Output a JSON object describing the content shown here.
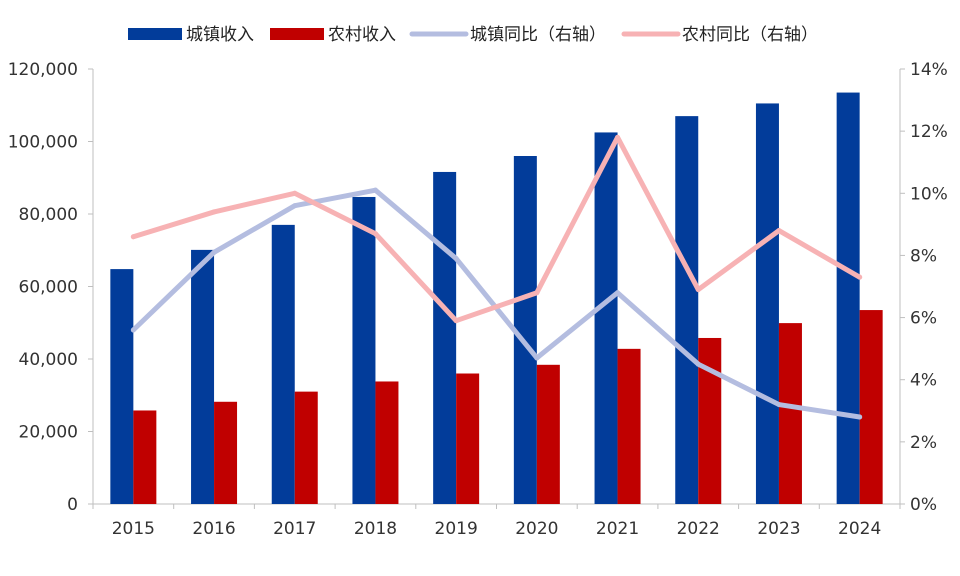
{
  "chart_data": {
    "type": "bar+line",
    "categories": [
      "2015",
      "2016",
      "2017",
      "2018",
      "2019",
      "2020",
      "2021",
      "2022",
      "2023",
      "2024"
    ],
    "bar_series": [
      {
        "name": "城镇收入",
        "color": "#023C9A",
        "values": [
          64800,
          70100,
          77000,
          84700,
          91600,
          96000,
          102500,
          107000,
          110500,
          113500
        ]
      },
      {
        "name": "农村收入",
        "color": "#C00000",
        "values": [
          25800,
          28200,
          31000,
          33800,
          36000,
          38400,
          42800,
          45800,
          49900,
          53500
        ]
      }
    ],
    "line_series": [
      {
        "name": "城镇同比（右轴）",
        "color": "#B4BDE0",
        "values": [
          5.6,
          8.1,
          9.6,
          10.1,
          7.9,
          4.7,
          6.8,
          4.5,
          3.2,
          2.8
        ]
      },
      {
        "name": "农村同比（右轴）",
        "color": "#F7B2B4",
        "values": [
          8.6,
          9.4,
          10.0,
          8.7,
          5.9,
          6.8,
          11.8,
          6.9,
          8.8,
          7.3
        ]
      }
    ],
    "y_left": {
      "min": 0,
      "max": 120000,
      "step": 20000,
      "tick_labels": [
        "0",
        "20,000",
        "40,000",
        "60,000",
        "80,000",
        "100,000",
        "120,000"
      ]
    },
    "y_right": {
      "min": 0,
      "max": 14,
      "step": 2,
      "tick_labels": [
        "0%",
        "2%",
        "4%",
        "6%",
        "8%",
        "10%",
        "12%",
        "14%"
      ]
    },
    "legend": {
      "position": "top",
      "labels": [
        "城镇收入",
        "农村收入",
        "城镇同比（右轴）",
        "农村同比（右轴）"
      ]
    },
    "title": "",
    "xlabel": "",
    "ylabel": "",
    "grid": false
  }
}
